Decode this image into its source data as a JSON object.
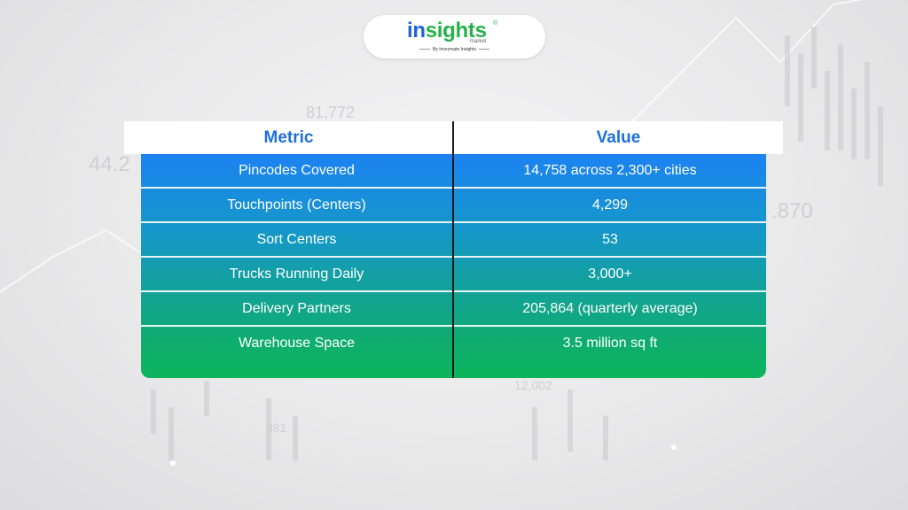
{
  "logo": {
    "word_part1": "in",
    "word_part2": "sights",
    "registered": "®",
    "sub": "market",
    "byline": "By Invezmate Insights"
  },
  "background": {
    "numbers": [
      "44.2",
      "81,772",
      ".870",
      "12,002",
      "381"
    ]
  },
  "table": {
    "headers": {
      "metric": "Metric",
      "value": "Value"
    },
    "rows": [
      {
        "metric": "Pincodes Covered",
        "value": "14,758 across 2,300+ cities"
      },
      {
        "metric": "Touchpoints (Centers)",
        "value": "4,299"
      },
      {
        "metric": "Sort Centers",
        "value": "53"
      },
      {
        "metric": "Trucks Running Daily",
        "value": "3,000+"
      },
      {
        "metric": "Delivery Partners",
        "value": "205,864 (quarterly average)"
      },
      {
        "metric": "Warehouse Space",
        "value": "3.5 million sq ft"
      }
    ]
  },
  "colors": {
    "header_text": "#1d6fe0",
    "row_top": "#1c82f2",
    "row_bottom": "#0cb55c",
    "logo_blue": "#1e63d6",
    "logo_green": "#25b24a"
  }
}
